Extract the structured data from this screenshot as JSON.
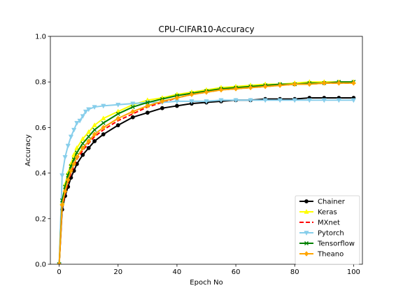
{
  "chart_data": {
    "type": "line",
    "title": "CPU-CIFAR10-Accuracy",
    "xlabel": "Epoch No",
    "ylabel": "Accuracy",
    "xlim": [
      -3,
      103
    ],
    "ylim": [
      0.0,
      1.0
    ],
    "xticks": [
      0,
      20,
      40,
      60,
      80,
      100
    ],
    "yticks": [
      0.0,
      0.2,
      0.4,
      0.6,
      0.8,
      1.0
    ],
    "xtick_labels": [
      "0",
      "20",
      "40",
      "60",
      "80",
      "100"
    ],
    "ytick_labels": [
      "0.0",
      "0.2",
      "0.4",
      "0.6",
      "0.8",
      "1.0"
    ],
    "legend_position": "lower-right",
    "grid": false,
    "series": [
      {
        "name": "Chainer",
        "color": "#000000",
        "dash": "solid",
        "marker": "circle",
        "x": [
          0,
          1,
          2,
          3,
          4,
          5,
          6,
          8,
          10,
          12,
          15,
          20,
          25,
          30,
          35,
          40,
          45,
          50,
          55,
          60,
          65,
          70,
          75,
          80,
          85,
          90,
          95,
          100
        ],
        "y": [
          0.0,
          0.24,
          0.3,
          0.34,
          0.38,
          0.41,
          0.44,
          0.48,
          0.51,
          0.54,
          0.57,
          0.61,
          0.645,
          0.665,
          0.685,
          0.695,
          0.705,
          0.71,
          0.715,
          0.72,
          0.72,
          0.725,
          0.725,
          0.725,
          0.73,
          0.73,
          0.73,
          0.73
        ]
      },
      {
        "name": "Keras",
        "color": "#ffff00",
        "dash": "solid",
        "marker": "triangle-up",
        "x": [
          0,
          1,
          2,
          3,
          4,
          5,
          6,
          8,
          10,
          12,
          15,
          20,
          25,
          30,
          35,
          40,
          45,
          50,
          55,
          60,
          65,
          70,
          75,
          80,
          85,
          90,
          95,
          100
        ],
        "y": [
          0.0,
          0.27,
          0.35,
          0.4,
          0.44,
          0.48,
          0.51,
          0.55,
          0.58,
          0.61,
          0.64,
          0.67,
          0.7,
          0.72,
          0.73,
          0.745,
          0.755,
          0.765,
          0.775,
          0.78,
          0.785,
          0.79,
          0.79,
          0.795,
          0.8,
          0.8,
          0.8,
          0.8
        ]
      },
      {
        "name": "MXnet",
        "color": "#ff0000",
        "dash": "dashed",
        "marker": "none",
        "x": [
          0,
          1,
          2,
          3,
          4,
          5,
          6,
          8,
          10,
          12,
          15,
          20,
          25,
          30,
          35,
          40,
          45,
          50,
          55,
          60,
          65,
          70,
          75,
          80,
          85,
          90,
          95,
          100
        ],
        "y": [
          0.0,
          0.25,
          0.31,
          0.36,
          0.4,
          0.43,
          0.46,
          0.5,
          0.53,
          0.56,
          0.59,
          0.63,
          0.66,
          0.69,
          0.71,
          0.73,
          0.745,
          0.755,
          0.765,
          0.77,
          0.775,
          0.78,
          0.785,
          0.79,
          0.79,
          0.795,
          0.795,
          0.795
        ]
      },
      {
        "name": "Pytorch",
        "color": "#87ceeb",
        "dash": "solid",
        "marker": "triangle-down",
        "x": [
          0,
          1,
          2,
          3,
          4,
          5,
          6,
          7,
          8,
          9,
          10,
          12,
          15,
          20,
          25,
          30,
          35,
          40,
          45,
          50,
          55,
          60,
          65,
          70,
          75,
          80,
          85,
          90,
          95,
          100
        ],
        "y": [
          0.0,
          0.39,
          0.47,
          0.52,
          0.56,
          0.59,
          0.62,
          0.63,
          0.65,
          0.67,
          0.68,
          0.69,
          0.695,
          0.7,
          0.705,
          0.71,
          0.71,
          0.715,
          0.715,
          0.715,
          0.72,
          0.72,
          0.72,
          0.72,
          0.72,
          0.72,
          0.72,
          0.72,
          0.72,
          0.72
        ]
      },
      {
        "name": "Tensorflow",
        "color": "#008000",
        "dash": "solid",
        "marker": "x",
        "x": [
          0,
          1,
          2,
          3,
          4,
          5,
          6,
          8,
          10,
          12,
          15,
          20,
          25,
          30,
          35,
          40,
          45,
          50,
          55,
          60,
          65,
          70,
          75,
          80,
          85,
          90,
          95,
          100
        ],
        "y": [
          0.0,
          0.28,
          0.34,
          0.39,
          0.43,
          0.46,
          0.49,
          0.53,
          0.56,
          0.59,
          0.62,
          0.66,
          0.69,
          0.71,
          0.725,
          0.74,
          0.75,
          0.76,
          0.77,
          0.775,
          0.78,
          0.785,
          0.79,
          0.79,
          0.795,
          0.795,
          0.8,
          0.8
        ]
      },
      {
        "name": "Theano",
        "color": "#ffa500",
        "dash": "solid",
        "marker": "diamond",
        "x": [
          0,
          1,
          2,
          3,
          4,
          5,
          6,
          8,
          10,
          12,
          15,
          20,
          25,
          30,
          35,
          40,
          45,
          50,
          55,
          60,
          65,
          70,
          75,
          80,
          85,
          90,
          95,
          100
        ],
        "y": [
          0.0,
          0.26,
          0.32,
          0.37,
          0.41,
          0.44,
          0.47,
          0.51,
          0.54,
          0.57,
          0.6,
          0.64,
          0.67,
          0.695,
          0.715,
          0.73,
          0.745,
          0.755,
          0.765,
          0.77,
          0.775,
          0.78,
          0.785,
          0.79,
          0.79,
          0.795,
          0.795,
          0.795
        ]
      }
    ]
  }
}
